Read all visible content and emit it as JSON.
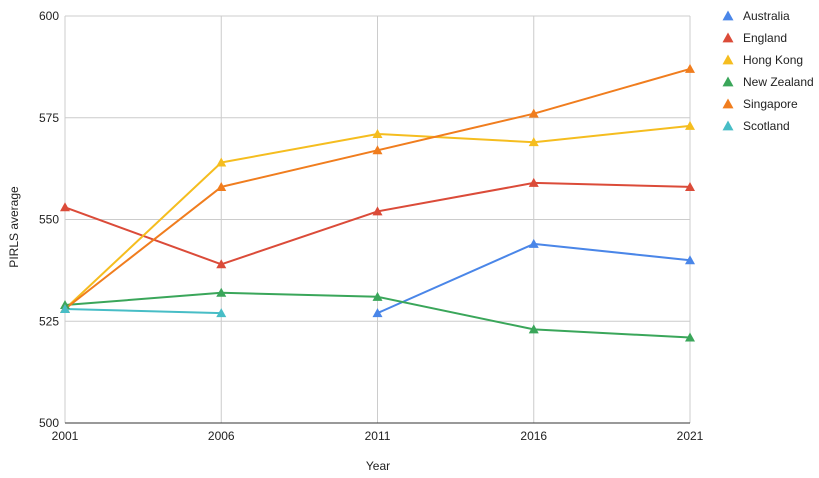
{
  "chart_data": {
    "type": "line",
    "title": "",
    "xlabel": "Year",
    "ylabel": "PIRLS average",
    "x": [
      2001,
      2006,
      2011,
      2016,
      2021
    ],
    "x_tick_labels": [
      "2001",
      "2006",
      "2011",
      "2016",
      "2021"
    ],
    "ylim": [
      500,
      600
    ],
    "y_ticks": [
      500,
      525,
      550,
      575,
      600
    ],
    "y_tick_labels": [
      "500",
      "525",
      "550",
      "575",
      "600"
    ],
    "grid": true,
    "legend_position": "right",
    "marker": "triangle",
    "series": [
      {
        "name": "Australia",
        "color": "#4a86e8",
        "values": [
          null,
          null,
          527,
          544,
          540
        ]
      },
      {
        "name": "England",
        "color": "#db4b39",
        "values": [
          553,
          539,
          552,
          559,
          558
        ]
      },
      {
        "name": "Hong Kong",
        "color": "#f5bd1f",
        "values": [
          528,
          564,
          571,
          569,
          573
        ]
      },
      {
        "name": "New Zealand",
        "color": "#3aa65a",
        "values": [
          529,
          532,
          531,
          523,
          521
        ]
      },
      {
        "name": "Singapore",
        "color": "#f07d1e",
        "values": [
          528,
          558,
          567,
          576,
          587
        ]
      },
      {
        "name": "Scotland",
        "color": "#47bdc6",
        "values": [
          528,
          527,
          null,
          null,
          null
        ]
      }
    ]
  }
}
